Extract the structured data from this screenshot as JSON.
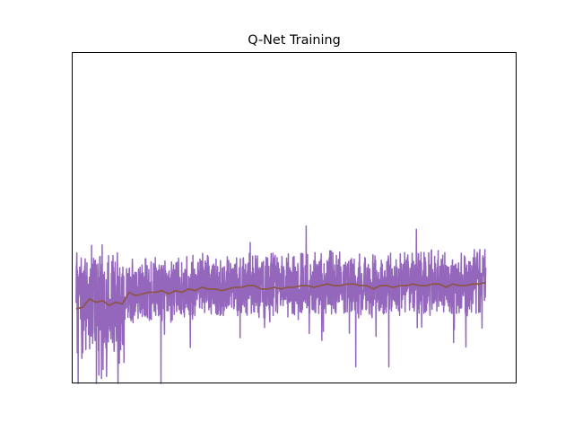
{
  "chart_data": {
    "type": "line",
    "title": "Q-Net Training",
    "xlabel": "",
    "ylabel": "",
    "xticks": "hidden",
    "yticks": "hidden",
    "grid": false,
    "legend": "none",
    "xlim": [
      -20,
      2000
    ],
    "ylim": [
      0,
      2
    ],
    "series": [
      {
        "role": "raw",
        "color": "#9467bd",
        "n_points": 1860,
        "x_range": [
          0,
          1860
        ],
        "typical_band": [
          0.5,
          0.75
        ],
        "envelope_low_early": [
          0.0,
          0.3
        ],
        "envelope_high": [
          0.7,
          0.95
        ],
        "spikes": [
          {
            "x": 92,
            "y": 0.0
          },
          {
            "x": 103,
            "y": 0.05
          },
          {
            "x": 115,
            "y": 0.03
          },
          {
            "x": 190,
            "y": 0.0
          },
          {
            "x": 255,
            "y": 0.75
          },
          {
            "x": 385,
            "y": 0.0
          },
          {
            "x": 790,
            "y": 0.85
          },
          {
            "x": 1045,
            "y": 0.95
          },
          {
            "x": 1270,
            "y": 0.1
          },
          {
            "x": 1420,
            "y": 0.1
          },
          {
            "x": 1545,
            "y": 0.93
          },
          {
            "x": 1770,
            "y": 0.22
          }
        ]
      },
      {
        "role": "moving-average",
        "color": "#8c564b",
        "x": [
          0,
          30,
          60,
          90,
          120,
          150,
          180,
          210,
          240,
          270,
          300,
          330,
          360,
          390,
          420,
          450,
          480,
          510,
          540,
          570,
          600,
          630,
          660,
          690,
          720,
          750,
          780,
          810,
          840,
          870,
          900,
          930,
          960,
          990,
          1020,
          1050,
          1080,
          1110,
          1140,
          1170,
          1200,
          1230,
          1260,
          1290,
          1320,
          1350,
          1380,
          1410,
          1440,
          1470,
          1500,
          1530,
          1560,
          1590,
          1620,
          1650,
          1680,
          1710,
          1740,
          1770,
          1800,
          1830,
          1860
        ],
        "y": [
          0.45,
          0.46,
          0.51,
          0.49,
          0.5,
          0.47,
          0.49,
          0.48,
          0.55,
          0.53,
          0.54,
          0.55,
          0.55,
          0.56,
          0.54,
          0.56,
          0.55,
          0.57,
          0.56,
          0.58,
          0.57,
          0.57,
          0.56,
          0.57,
          0.58,
          0.58,
          0.59,
          0.59,
          0.57,
          0.57,
          0.58,
          0.57,
          0.58,
          0.58,
          0.59,
          0.59,
          0.58,
          0.59,
          0.6,
          0.59,
          0.59,
          0.6,
          0.6,
          0.59,
          0.59,
          0.57,
          0.59,
          0.59,
          0.58,
          0.59,
          0.59,
          0.6,
          0.59,
          0.59,
          0.6,
          0.6,
          0.58,
          0.6,
          0.59,
          0.59,
          0.6,
          0.6,
          0.61
        ]
      }
    ]
  }
}
